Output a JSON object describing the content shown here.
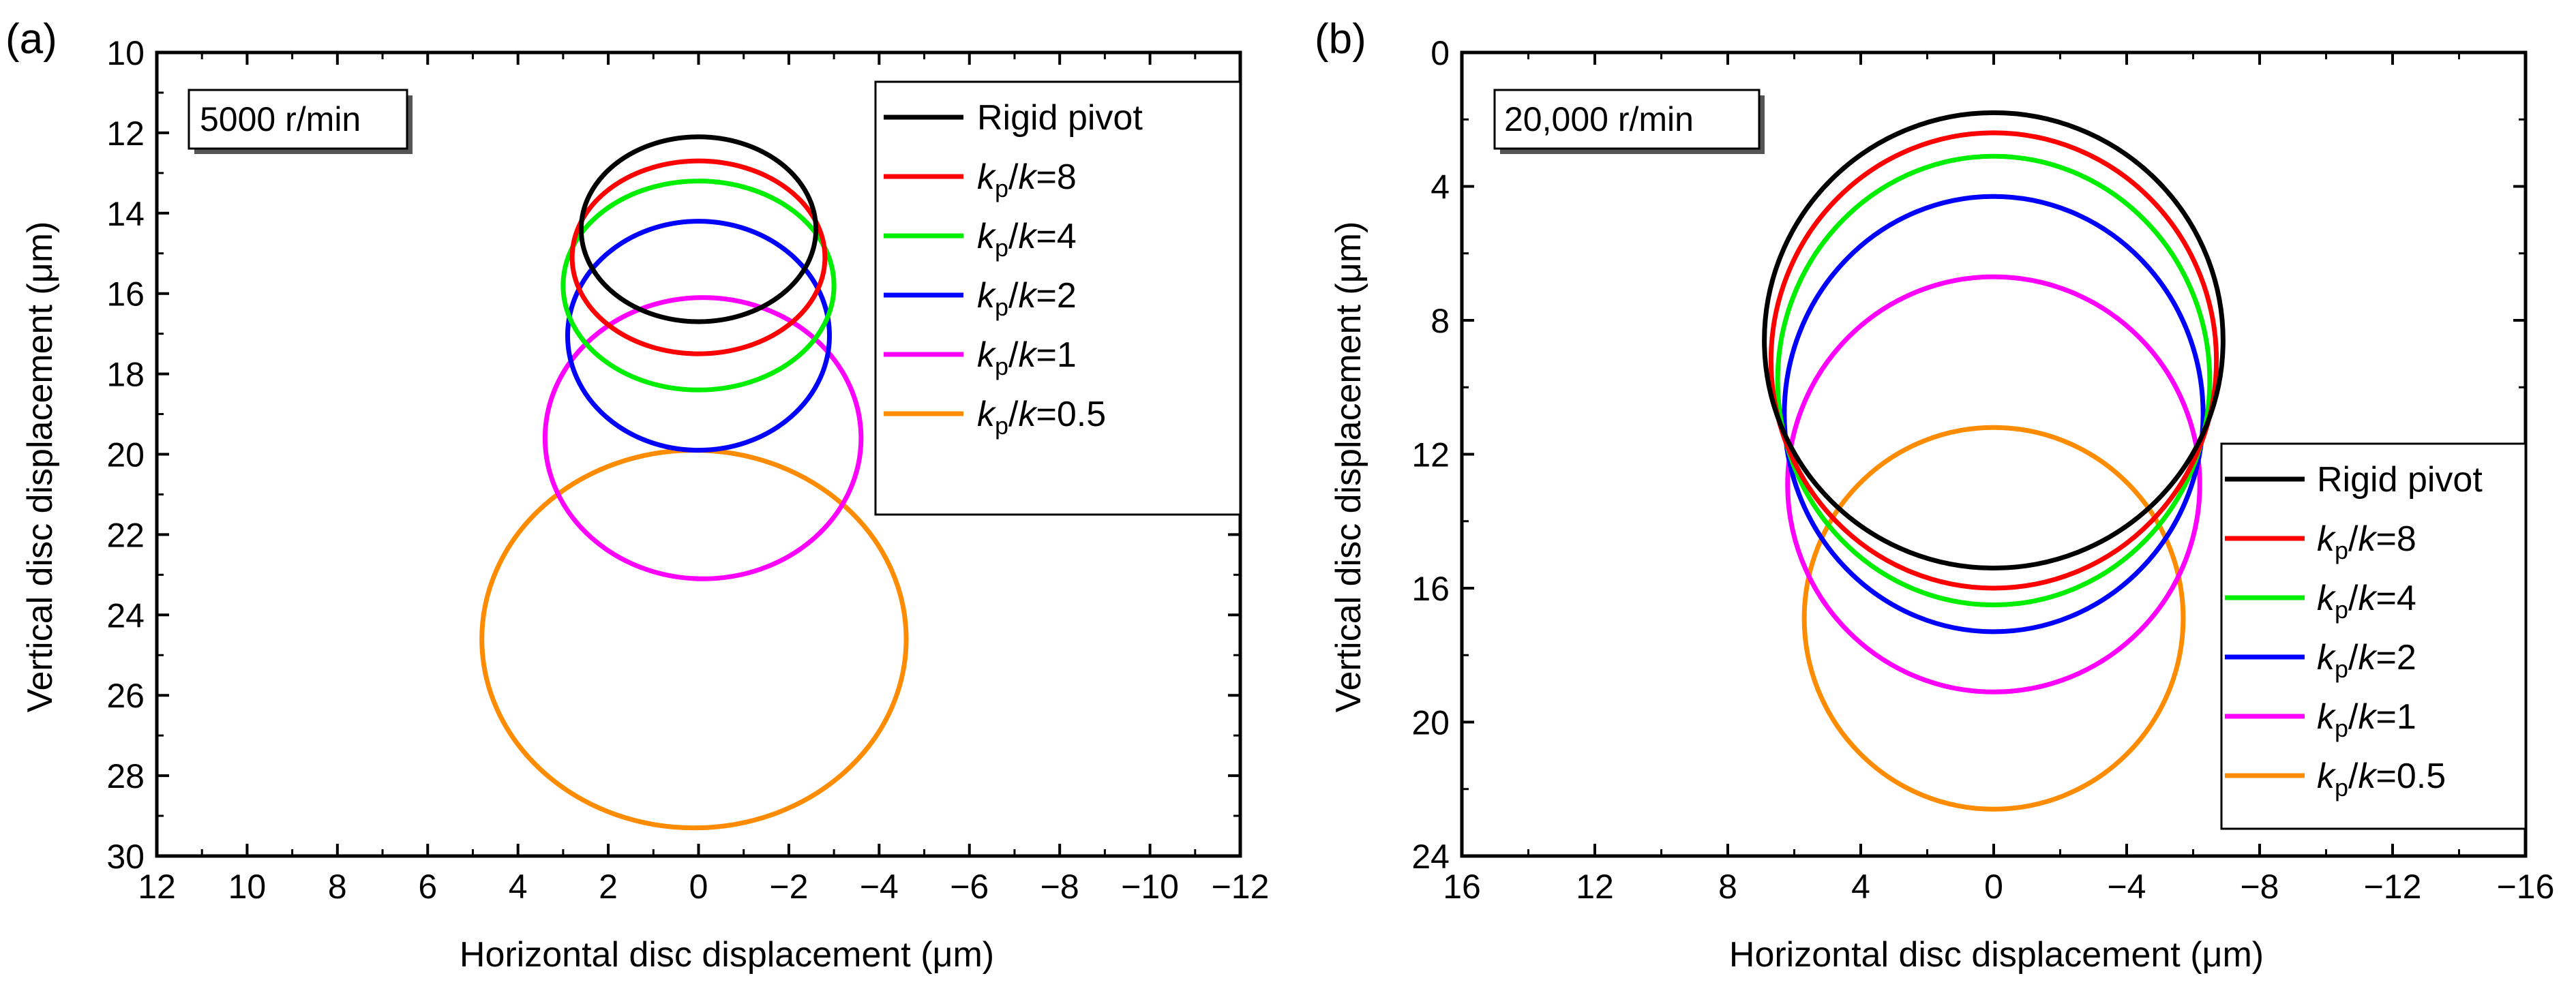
{
  "chart_data": [
    {
      "type": "line",
      "panel_label": "(a)",
      "speed_label": "5000 r/min",
      "xlabel": "Horizontal disc displacement (μm)",
      "ylabel": "Vertical disc displacement (μm)",
      "xlim": [
        12,
        -12
      ],
      "ylim": [
        10,
        30
      ],
      "x_reversed": true,
      "y_inverted": true,
      "x_ticks": [
        12,
        10,
        8,
        6,
        4,
        2,
        0,
        -2,
        -4,
        -6,
        -8,
        -10,
        -12
      ],
      "x_tick_labels": [
        "12",
        "10",
        "8",
        "6",
        "4",
        "2",
        "0",
        "−2",
        "−4",
        "−6",
        "−8",
        "−10",
        "−12"
      ],
      "y_ticks": [
        10,
        12,
        14,
        16,
        18,
        20,
        22,
        24,
        26,
        28,
        30
      ],
      "y_tick_labels": [
        "10",
        "12",
        "14",
        "16",
        "18",
        "20",
        "22",
        "24",
        "26",
        "28",
        "30"
      ],
      "legend_position": "top-right",
      "series": [
        {
          "name": "Rigid pivot",
          "color": "#000000",
          "center": [
            0,
            14.4
          ],
          "x_radius": 2.6,
          "y_radius": 2.3
        },
        {
          "name": "kp/k=8",
          "color": "#ff0000",
          "center": [
            0,
            15.1
          ],
          "x_radius": 2.8,
          "y_radius": 2.4
        },
        {
          "name": "kp/k=4",
          "color": "#00ee00",
          "center": [
            0,
            15.8
          ],
          "x_radius": 3.0,
          "y_radius": 2.6
        },
        {
          "name": "kp/k=2",
          "color": "#0000ff",
          "center": [
            0,
            17.05
          ],
          "x_radius": 2.9,
          "y_radius": 2.85
        },
        {
          "name": "kp/k=1",
          "color": "#ff00ff",
          "center": [
            -0.1,
            19.6
          ],
          "x_radius": 3.5,
          "y_radius": 3.5
        },
        {
          "name": "kp/k=0.5",
          "color": "#ff8c00",
          "center": [
            0.1,
            24.6
          ],
          "x_radius": 4.7,
          "y_radius": 4.7
        }
      ]
    },
    {
      "type": "line",
      "panel_label": "(b)",
      "speed_label": "20,000 r/min",
      "xlabel": "Horizontal disc displacement (μm)",
      "ylabel": "Vertical disc displacement (μm)",
      "xlim": [
        16,
        -16
      ],
      "ylim": [
        0,
        24
      ],
      "x_reversed": true,
      "y_inverted": true,
      "x_ticks": [
        16,
        12,
        8,
        4,
        0,
        -4,
        -8,
        -12,
        -16
      ],
      "x_tick_labels": [
        "16",
        "12",
        "8",
        "4",
        "0",
        "−4",
        "−8",
        "−12",
        "−16"
      ],
      "y_ticks": [
        0,
        4,
        8,
        12,
        16,
        20,
        24
      ],
      "y_tick_labels": [
        "0",
        "4",
        "8",
        "12",
        "16",
        "20",
        "24"
      ],
      "legend_position": "bottom-right",
      "series": [
        {
          "name": "Rigid pivot",
          "color": "#000000",
          "center": [
            0,
            8.6
          ],
          "x_radius": 6.9,
          "y_radius": 6.8
        },
        {
          "name": "kp/k=8",
          "color": "#ff0000",
          "center": [
            0,
            9.2
          ],
          "x_radius": 6.7,
          "y_radius": 6.8
        },
        {
          "name": "kp/k=4",
          "color": "#00ee00",
          "center": [
            0,
            9.8
          ],
          "x_radius": 6.5,
          "y_radius": 6.7
        },
        {
          "name": "kp/k=2",
          "color": "#0000ff",
          "center": [
            0,
            10.8
          ],
          "x_radius": 6.3,
          "y_radius": 6.5
        },
        {
          "name": "kp/k=1",
          "color": "#ff00ff",
          "center": [
            0,
            12.9
          ],
          "x_radius": 6.2,
          "y_radius": 6.2
        },
        {
          "name": "kp/k=0.5",
          "color": "#ff8c00",
          "center": [
            0,
            16.9
          ],
          "x_radius": 5.7,
          "y_radius": 5.7
        }
      ]
    }
  ],
  "legend": {
    "rigid_pivot": "Rigid pivot",
    "ratio_k": "k",
    "ratio_p": "p",
    "ratio_slash": "/",
    "ratio_values": [
      "=8",
      "=4",
      "=2",
      "=1",
      "=0.5"
    ]
  }
}
